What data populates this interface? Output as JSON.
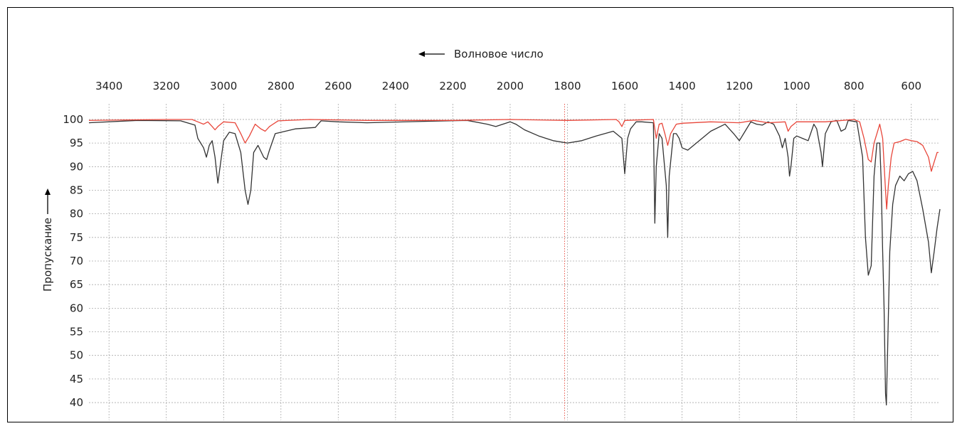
{
  "chart_data": {
    "type": "line",
    "title": "",
    "xlabel": "Волновое число",
    "ylabel": "Пропускание",
    "x_reversed": true,
    "xlim": [
      3470,
      500
    ],
    "ylim": [
      38.5,
      101.5
    ],
    "x_ticks": [
      3400,
      3200,
      3000,
      2800,
      2600,
      2400,
      2200,
      2000,
      1800,
      1600,
      1400,
      1200,
      1000,
      800,
      600
    ],
    "y_ticks": [
      100,
      95,
      90,
      85,
      80,
      75,
      70,
      65,
      60,
      55,
      50,
      45,
      40
    ],
    "grid": true,
    "reference_line": {
      "x": 1810,
      "color": "#e8463a"
    },
    "colors": {
      "black_series": "#333333",
      "red_series": "#e8463a",
      "grid": "#aaaaaa"
    },
    "series": [
      {
        "color": "#333333",
        "points": [
          [
            3470,
            99.3
          ],
          [
            3300,
            99.8
          ],
          [
            3150,
            99.7
          ],
          [
            3100,
            98.8
          ],
          [
            3090,
            96
          ],
          [
            3070,
            94
          ],
          [
            3060,
            92
          ],
          [
            3050,
            94.5
          ],
          [
            3040,
            95.5
          ],
          [
            3030,
            92
          ],
          [
            3020,
            86.5
          ],
          [
            3010,
            91
          ],
          [
            3000,
            95.5
          ],
          [
            2980,
            97.3
          ],
          [
            2960,
            97
          ],
          [
            2940,
            93
          ],
          [
            2925,
            85
          ],
          [
            2915,
            82
          ],
          [
            2905,
            85
          ],
          [
            2895,
            93
          ],
          [
            2880,
            94.5
          ],
          [
            2860,
            92
          ],
          [
            2850,
            91.5
          ],
          [
            2840,
            93.5
          ],
          [
            2820,
            97
          ],
          [
            2750,
            98
          ],
          [
            2680,
            98.3
          ],
          [
            2660,
            99.7
          ],
          [
            2600,
            99.5
          ],
          [
            2500,
            99.3
          ],
          [
            2300,
            99.6
          ],
          [
            2150,
            99.8
          ],
          [
            2080,
            99
          ],
          [
            2050,
            98.5
          ],
          [
            2000,
            99.5
          ],
          [
            1980,
            99
          ],
          [
            1950,
            97.8
          ],
          [
            1900,
            96.5
          ],
          [
            1850,
            95.5
          ],
          [
            1800,
            95
          ],
          [
            1750,
            95.5
          ],
          [
            1700,
            96.5
          ],
          [
            1640,
            97.5
          ],
          [
            1610,
            96
          ],
          [
            1600,
            88.5
          ],
          [
            1590,
            96
          ],
          [
            1580,
            98
          ],
          [
            1560,
            99.5
          ],
          [
            1540,
            99.5
          ],
          [
            1500,
            99.3
          ],
          [
            1495,
            78
          ],
          [
            1490,
            90
          ],
          [
            1480,
            97
          ],
          [
            1470,
            96
          ],
          [
            1455,
            86
          ],
          [
            1450,
            75
          ],
          [
            1445,
            88
          ],
          [
            1430,
            97
          ],
          [
            1420,
            97
          ],
          [
            1410,
            96
          ],
          [
            1400,
            94
          ],
          [
            1380,
            93.5
          ],
          [
            1350,
            95
          ],
          [
            1300,
            97.5
          ],
          [
            1250,
            99
          ],
          [
            1220,
            97
          ],
          [
            1200,
            95.5
          ],
          [
            1180,
            97.5
          ],
          [
            1160,
            99.5
          ],
          [
            1140,
            99
          ],
          [
            1120,
            98.8
          ],
          [
            1100,
            99.5
          ],
          [
            1080,
            99
          ],
          [
            1060,
            96.5
          ],
          [
            1050,
            94
          ],
          [
            1040,
            96
          ],
          [
            1035,
            94
          ],
          [
            1030,
            92
          ],
          [
            1025,
            88
          ],
          [
            1020,
            90
          ],
          [
            1010,
            96
          ],
          [
            1000,
            96.5
          ],
          [
            980,
            96
          ],
          [
            960,
            95.5
          ],
          [
            940,
            99
          ],
          [
            930,
            98
          ],
          [
            915,
            93
          ],
          [
            910,
            90
          ],
          [
            900,
            97
          ],
          [
            880,
            99.5
          ],
          [
            860,
            99.8
          ],
          [
            845,
            97.5
          ],
          [
            830,
            98
          ],
          [
            820,
            99.8
          ],
          [
            790,
            99.5
          ],
          [
            770,
            92
          ],
          [
            760,
            75
          ],
          [
            750,
            67
          ],
          [
            740,
            69
          ],
          [
            730,
            88
          ],
          [
            720,
            95
          ],
          [
            710,
            95
          ],
          [
            705,
            87
          ],
          [
            700,
            72
          ],
          [
            695,
            60
          ],
          [
            690,
            42
          ],
          [
            687,
            39.5
          ],
          [
            683,
            50
          ],
          [
            675,
            72
          ],
          [
            665,
            82
          ],
          [
            655,
            86
          ],
          [
            640,
            88
          ],
          [
            625,
            87
          ],
          [
            610,
            88.5
          ],
          [
            595,
            89
          ],
          [
            580,
            87
          ],
          [
            560,
            81
          ],
          [
            540,
            74
          ],
          [
            530,
            67.5
          ],
          [
            520,
            72
          ],
          [
            510,
            77
          ],
          [
            500,
            81
          ]
        ]
      },
      {
        "color": "#e8463a",
        "points": [
          [
            3470,
            99.8
          ],
          [
            3200,
            100
          ],
          [
            3110,
            100
          ],
          [
            3090,
            99.5
          ],
          [
            3070,
            99
          ],
          [
            3055,
            99.5
          ],
          [
            3040,
            98.5
          ],
          [
            3030,
            97.8
          ],
          [
            3020,
            98.5
          ],
          [
            3000,
            99.5
          ],
          [
            2960,
            99.3
          ],
          [
            2940,
            97
          ],
          [
            2925,
            95
          ],
          [
            2910,
            96.5
          ],
          [
            2890,
            99
          ],
          [
            2870,
            98
          ],
          [
            2855,
            97.5
          ],
          [
            2840,
            98.5
          ],
          [
            2810,
            99.7
          ],
          [
            2700,
            100
          ],
          [
            2500,
            99.8
          ],
          [
            2200,
            99.8
          ],
          [
            2000,
            100
          ],
          [
            1800,
            99.8
          ],
          [
            1630,
            100
          ],
          [
            1620,
            99.5
          ],
          [
            1610,
            98.5
          ],
          [
            1600,
            99.8
          ],
          [
            1500,
            100
          ],
          [
            1490,
            96
          ],
          [
            1480,
            99
          ],
          [
            1470,
            99.2
          ],
          [
            1460,
            97
          ],
          [
            1450,
            94.5
          ],
          [
            1440,
            97
          ],
          [
            1420,
            99
          ],
          [
            1400,
            99.2
          ],
          [
            1300,
            99.5
          ],
          [
            1200,
            99.3
          ],
          [
            1150,
            99.8
          ],
          [
            1100,
            99.3
          ],
          [
            1040,
            99.5
          ],
          [
            1030,
            97.5
          ],
          [
            1020,
            98.5
          ],
          [
            1000,
            99.5
          ],
          [
            900,
            99.5
          ],
          [
            800,
            100
          ],
          [
            780,
            99.5
          ],
          [
            765,
            96
          ],
          [
            750,
            91.5
          ],
          [
            740,
            91
          ],
          [
            730,
            95
          ],
          [
            720,
            97
          ],
          [
            710,
            99
          ],
          [
            700,
            96
          ],
          [
            690,
            85
          ],
          [
            686,
            81
          ],
          [
            680,
            86
          ],
          [
            670,
            92
          ],
          [
            660,
            95
          ],
          [
            640,
            95.3
          ],
          [
            620,
            95.8
          ],
          [
            600,
            95.5
          ],
          [
            580,
            95.3
          ],
          [
            560,
            94.5
          ],
          [
            540,
            92
          ],
          [
            530,
            89
          ],
          [
            520,
            91
          ],
          [
            510,
            93
          ],
          [
            505,
            93
          ]
        ]
      }
    ]
  }
}
